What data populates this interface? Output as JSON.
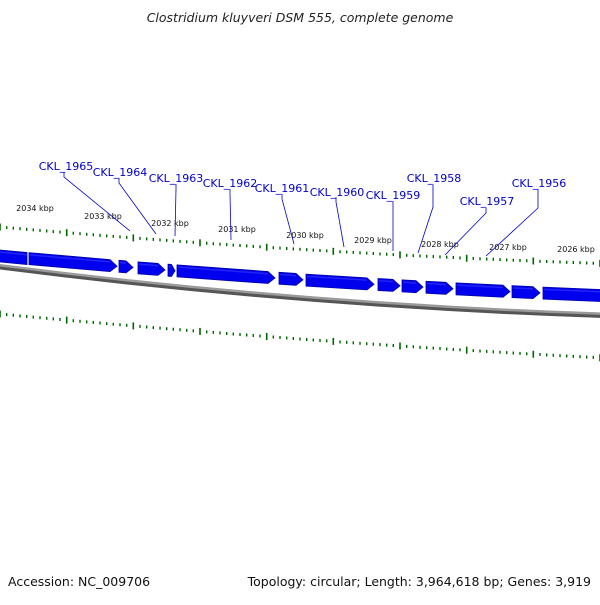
{
  "title": "Clostridium kluyveri DSM 555, complete genome",
  "accession": "Accession: NC_009706",
  "summary": "Topology: circular; Length: 3,964,618 bp; Genes: 3,919",
  "colors": {
    "gene": "#0000ee",
    "gene_dark": "#0000aa",
    "label": "#0000cc",
    "tick": "#006400",
    "backbone": "#808080",
    "backbone_dark": "#555555"
  },
  "ruler_labels": [
    "2034 kbp",
    "2033 kbp",
    "2032 kbp",
    "2031 kbp",
    "2030 kbp",
    "2029 kbp",
    "2028 kbp",
    "2027 kbp",
    "2026 kbp"
  ],
  "gene_labels": [
    "CKL_1965",
    "CKL_1964",
    "CKL_1963",
    "CKL_1962",
    "CKL_1961",
    "CKL_1960",
    "CKL_1959",
    "CKL_1958",
    "CKL_1957",
    "CKL_1956"
  ]
}
